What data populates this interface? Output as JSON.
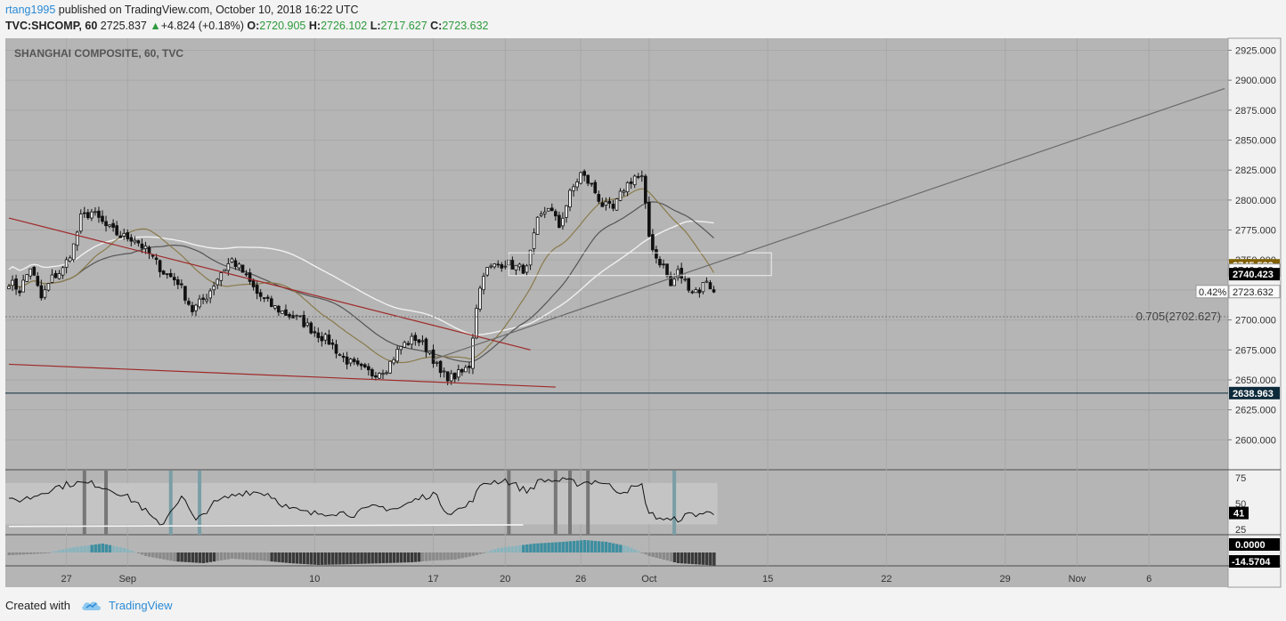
{
  "header": {
    "user": "rtang1995",
    "published": "published on TradingView.com, October 10, 2018 16:22 UTC",
    "symbol": "TVC:SHCOMP, 60",
    "last": "2725.837",
    "change_arrow": "▲",
    "change": "+4.824 (+0.18%)",
    "o_label": "O:",
    "o": "2720.905",
    "h_label": "H:",
    "h": "2726.102",
    "l_label": "L:",
    "l": "2717.627",
    "c_label": "C:",
    "c": "2723.632"
  },
  "footer": {
    "created": "Created with",
    "brand": "TradingView"
  },
  "colors": {
    "pane_bg": "#b5b5b5",
    "up": "#f4f4f4",
    "down": "#111111",
    "ma_white": "#f0f0f0",
    "ma_dark": "#555555",
    "ma_gold": "#8a7a4a",
    "trend_red": "#a02828",
    "trend_gray": "#6a6a6a",
    "label_gold": "#806000",
    "label_dark": "#0c2a3a"
  },
  "chart_data": {
    "type": "candlestick",
    "title": "SHANGHAI COMPOSITE, 60, TVC",
    "ylim": [
      2575,
      2935
    ],
    "y_ticks": [
      2600,
      2625,
      2650,
      2675,
      2700,
      2725,
      2750,
      2775,
      2800,
      2825,
      2850,
      2875,
      2900,
      2925
    ],
    "y_tick_labels": [
      "2600.000",
      "2625.000",
      "2650.000",
      "2675.000",
      "2700.000",
      "2725.000",
      "2750.000",
      "2775.000",
      "2800.000",
      "2825.000",
      "2850.000",
      "2875.000",
      "2900.000",
      "2925.000"
    ],
    "x_axis_labels": [
      {
        "label": "27",
        "idx": 16
      },
      {
        "label": "Sep",
        "idx": 33
      },
      {
        "label": "10",
        "idx": 85
      },
      {
        "label": "17",
        "idx": 118
      },
      {
        "label": "20",
        "idx": 138
      },
      {
        "label": "26",
        "idx": 159
      },
      {
        "label": "Oct",
        "idx": 178
      },
      {
        "label": "15",
        "idx": 211
      },
      {
        "label": "22",
        "idx": 244
      },
      {
        "label": "29",
        "idx": 277
      },
      {
        "label": "Nov",
        "idx": 297
      },
      {
        "label": "6",
        "idx": 317
      }
    ],
    "x_range": [
      0,
      338
    ],
    "price_anchors": [
      [
        0,
        2732
      ],
      [
        3,
        2725
      ],
      [
        6,
        2744
      ],
      [
        9,
        2718
      ],
      [
        12,
        2735
      ],
      [
        15,
        2742
      ],
      [
        18,
        2762
      ],
      [
        20,
        2785
      ],
      [
        23,
        2790
      ],
      [
        27,
        2778
      ],
      [
        31,
        2770
      ],
      [
        35,
        2768
      ],
      [
        39,
        2755
      ],
      [
        43,
        2740
      ],
      [
        47,
        2732
      ],
      [
        51,
        2708
      ],
      [
        55,
        2720
      ],
      [
        59,
        2740
      ],
      [
        62,
        2750
      ],
      [
        65,
        2740
      ],
      [
        69,
        2722
      ],
      [
        73,
        2712
      ],
      [
        77,
        2705
      ],
      [
        81,
        2700
      ],
      [
        85,
        2690
      ],
      [
        89,
        2682
      ],
      [
        93,
        2668
      ],
      [
        97,
        2660
      ],
      [
        101,
        2655
      ],
      [
        105,
        2660
      ],
      [
        109,
        2678
      ],
      [
        113,
        2685
      ],
      [
        117,
        2674
      ],
      [
        120,
        2655
      ],
      [
        123,
        2652
      ],
      [
        126,
        2656
      ],
      [
        128,
        2662
      ],
      [
        130,
        2712
      ],
      [
        132,
        2740
      ],
      [
        135,
        2745
      ],
      [
        138,
        2748
      ],
      [
        141,
        2744
      ],
      [
        144,
        2742
      ],
      [
        147,
        2782
      ],
      [
        150,
        2795
      ],
      [
        153,
        2778
      ],
      [
        156,
        2805
      ],
      [
        159,
        2822
      ],
      [
        162,
        2812
      ],
      [
        165,
        2796
      ],
      [
        168,
        2792
      ],
      [
        171,
        2810
      ],
      [
        174,
        2820
      ],
      [
        176,
        2818
      ],
      [
        178,
        2770
      ],
      [
        180,
        2752
      ],
      [
        182,
        2745
      ],
      [
        184,
        2728
      ],
      [
        186,
        2740
      ],
      [
        188,
        2732
      ],
      [
        190,
        2725
      ],
      [
        192,
        2725
      ],
      [
        194,
        2734
      ],
      [
        196,
        2722
      ]
    ],
    "n_candles": 197,
    "key_levels": [
      {
        "label": "0.705(2702.627)",
        "value": 2702.627,
        "style": "dotted"
      },
      {
        "label": "2638.963",
        "value": 2638.963,
        "style": "solid"
      }
    ],
    "price_labels": [
      {
        "text": "2745.583",
        "value": 2745.583,
        "style": "gold"
      },
      {
        "text": "2742.982",
        "value": 2742.982,
        "style": "plain"
      },
      {
        "text": "2740.423",
        "value": 2740.423,
        "style": "black"
      },
      {
        "text": "2723.632",
        "value": 2723.632,
        "style": "plain",
        "prefix": "0.42%"
      }
    ],
    "trendlines": [
      {
        "name": "upper_red",
        "color": "trend_red",
        "p1": [
          0,
          2785
        ],
        "p2": [
          145,
          2675
        ]
      },
      {
        "name": "lower_red",
        "color": "trend_red",
        "p1": [
          0,
          2663
        ],
        "p2": [
          152,
          2644
        ]
      },
      {
        "name": "rising_gray",
        "color": "trend_gray",
        "p1": [
          118,
          2667
        ],
        "p2": [
          338,
          2893
        ]
      }
    ],
    "rectangle": {
      "x": [
        139,
        212
      ],
      "y": [
        2737,
        2756
      ]
    },
    "rsi": {
      "ylim": [
        20,
        82
      ],
      "ticks": [
        25,
        50,
        75
      ],
      "tick_labels": [
        "25",
        "50",
        "75"
      ],
      "band": [
        30,
        70
      ],
      "last_label": "41",
      "anchors": [
        [
          0,
          52
        ],
        [
          6,
          56
        ],
        [
          12,
          65
        ],
        [
          18,
          70
        ],
        [
          24,
          69
        ],
        [
          30,
          62
        ],
        [
          36,
          50
        ],
        [
          42,
          28
        ],
        [
          48,
          58
        ],
        [
          52,
          32
        ],
        [
          56,
          48
        ],
        [
          60,
          55
        ],
        [
          66,
          62
        ],
        [
          72,
          60
        ],
        [
          78,
          45
        ],
        [
          84,
          40
        ],
        [
          90,
          42
        ],
        [
          96,
          40
        ],
        [
          102,
          47
        ],
        [
          108,
          45
        ],
        [
          114,
          55
        ],
        [
          118,
          60
        ],
        [
          122,
          42
        ],
        [
          126,
          45
        ],
        [
          128,
          50
        ],
        [
          132,
          70
        ],
        [
          138,
          73
        ],
        [
          144,
          62
        ],
        [
          148,
          73
        ],
        [
          154,
          72
        ],
        [
          158,
          70
        ],
        [
          164,
          72
        ],
        [
          170,
          62
        ],
        [
          176,
          67
        ],
        [
          178,
          40
        ],
        [
          184,
          33
        ],
        [
          190,
          40
        ],
        [
          196,
          41
        ]
      ],
      "highlight_cols": [
        21,
        27,
        45,
        53,
        139,
        152,
        156,
        161,
        185
      ]
    },
    "macd": {
      "ticks_labels": [
        "0.0000",
        "-14.5704"
      ],
      "anchors": [
        [
          0,
          -3
        ],
        [
          10,
          -1
        ],
        [
          18,
          6
        ],
        [
          26,
          10
        ],
        [
          32,
          5
        ],
        [
          38,
          -4
        ],
        [
          46,
          -10
        ],
        [
          54,
          -12
        ],
        [
          62,
          -7
        ],
        [
          70,
          -9
        ],
        [
          78,
          -12
        ],
        [
          86,
          -14
        ],
        [
          96,
          -13
        ],
        [
          104,
          -12
        ],
        [
          112,
          -11
        ],
        [
          118,
          -9
        ],
        [
          124,
          -8
        ],
        [
          130,
          -3
        ],
        [
          136,
          5
        ],
        [
          146,
          10
        ],
        [
          154,
          12
        ],
        [
          160,
          14
        ],
        [
          166,
          12
        ],
        [
          172,
          7
        ],
        [
          178,
          -4
        ],
        [
          186,
          -12
        ],
        [
          196,
          -14.5704
        ]
      ]
    }
  }
}
